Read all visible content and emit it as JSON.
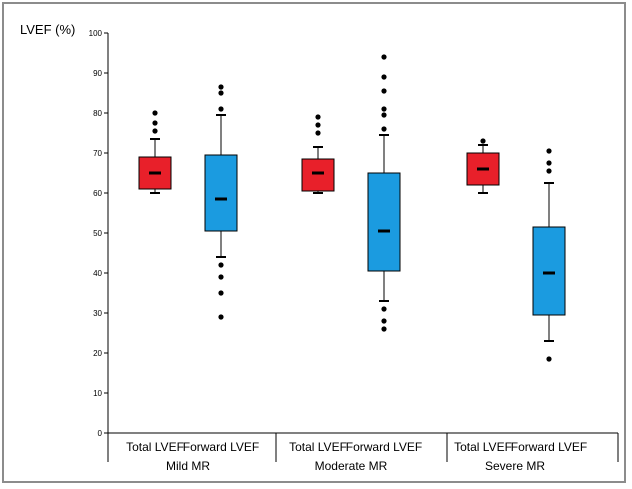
{
  "chart_data": {
    "type": "boxplot",
    "ylabel": "LVEF (%)",
    "ylim": [
      0,
      100
    ],
    "yticks": [
      0,
      10,
      20,
      30,
      40,
      50,
      60,
      70,
      80,
      90,
      100
    ],
    "group_labels": [
      "Mild MR",
      "Moderate MR",
      "Severe MR"
    ],
    "series_colors": {
      "Total LVEF": "#e8202a",
      "Forward LVEF": "#1b9be0"
    },
    "boxes": [
      {
        "group": "Mild MR",
        "category": "Total LVEF",
        "whisker_low": 60,
        "q1": 61,
        "median": 65,
        "q3": 69,
        "whisker_high": 73.5,
        "outliers": [
          75.5,
          77.5,
          80
        ]
      },
      {
        "group": "Mild MR",
        "category": "Forward LVEF",
        "whisker_low": 44,
        "q1": 50.5,
        "median": 58.5,
        "q3": 69.5,
        "whisker_high": 79.5,
        "outliers": [
          81,
          85,
          86.5,
          42,
          39,
          35,
          29
        ]
      },
      {
        "group": "Moderate MR",
        "category": "Total LVEF",
        "whisker_low": 60,
        "q1": 60.5,
        "median": 65,
        "q3": 68.5,
        "whisker_high": 71.5,
        "outliers": [
          75,
          77,
          79
        ]
      },
      {
        "group": "Moderate MR",
        "category": "Forward LVEF",
        "whisker_low": 33,
        "q1": 40.5,
        "median": 50.5,
        "q3": 65,
        "whisker_high": 74.5,
        "outliers": [
          76,
          79.5,
          81,
          85.5,
          89,
          94,
          31,
          28,
          26
        ]
      },
      {
        "group": "Severe MR",
        "category": "Total LVEF",
        "whisker_low": 60,
        "q1": 62,
        "median": 66,
        "q3": 70,
        "whisker_high": 72,
        "outliers": [
          73
        ]
      },
      {
        "group": "Severe MR",
        "category": "Forward LVEF",
        "whisker_low": 23,
        "q1": 29.5,
        "median": 40,
        "q3": 51.5,
        "whisker_high": 62.5,
        "outliers": [
          65.5,
          67.5,
          70.5,
          18.5
        ]
      }
    ]
  }
}
